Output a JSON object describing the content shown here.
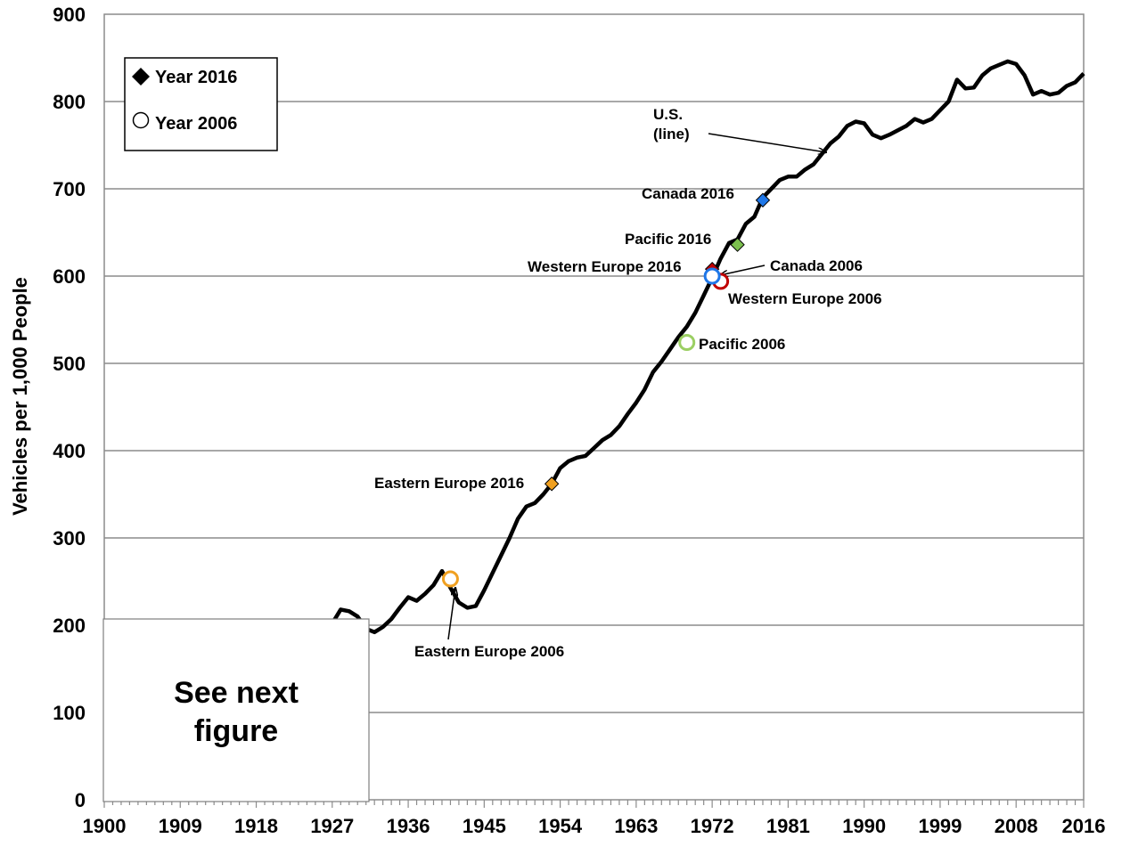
{
  "chart_data": {
    "type": "line",
    "ylabel": "Vehicles per 1,000 People",
    "xlabel": "",
    "xlim": [
      1900,
      2016
    ],
    "ylim": [
      0,
      900
    ],
    "y_ticks": [
      "0",
      "100",
      "200",
      "300",
      "400",
      "500",
      "600",
      "700",
      "800",
      "900"
    ],
    "x_ticks": [
      "1900",
      "1909",
      "1918",
      "1927",
      "1936",
      "1945",
      "1954",
      "1963",
      "1972",
      "1981",
      "1990",
      "1999",
      "2008",
      "2016"
    ],
    "grid": "horizontal",
    "legend": {
      "position": "top-left",
      "items": [
        {
          "label": "Year 2016",
          "marker": "filled-diamond"
        },
        {
          "label": "Year 2006",
          "marker": "open-circle"
        }
      ]
    },
    "overlay_box": {
      "text_line1": "See next",
      "text_line2": "figure"
    },
    "series": [
      {
        "name": "U.S.",
        "label_line1": "U.S.",
        "label_line2": "(line)",
        "color": "#000000",
        "points": [
          [
            1927,
            202
          ],
          [
            1928,
            218
          ],
          [
            1929,
            216
          ],
          [
            1930,
            210
          ],
          [
            1931,
            196
          ],
          [
            1932,
            192
          ],
          [
            1933,
            198
          ],
          [
            1934,
            207
          ],
          [
            1935,
            220
          ],
          [
            1936,
            232
          ],
          [
            1937,
            228
          ],
          [
            1938,
            236
          ],
          [
            1939,
            246
          ],
          [
            1940,
            262
          ],
          [
            1941,
            243
          ],
          [
            1942,
            226
          ],
          [
            1943,
            220
          ],
          [
            1944,
            222
          ],
          [
            1945,
            240
          ],
          [
            1946,
            260
          ],
          [
            1947,
            280
          ],
          [
            1948,
            300
          ],
          [
            1949,
            322
          ],
          [
            1950,
            336
          ],
          [
            1951,
            340
          ],
          [
            1952,
            350
          ],
          [
            1953,
            362
          ],
          [
            1954,
            380
          ],
          [
            1955,
            388
          ],
          [
            1956,
            392
          ],
          [
            1957,
            394
          ],
          [
            1958,
            403
          ],
          [
            1959,
            412
          ],
          [
            1960,
            418
          ],
          [
            1961,
            428
          ],
          [
            1962,
            442
          ],
          [
            1963,
            455
          ],
          [
            1964,
            470
          ],
          [
            1965,
            490
          ],
          [
            1966,
            502
          ],
          [
            1967,
            516
          ],
          [
            1968,
            530
          ],
          [
            1969,
            542
          ],
          [
            1970,
            558
          ],
          [
            1971,
            578
          ],
          [
            1972,
            598
          ],
          [
            1973,
            620
          ],
          [
            1974,
            638
          ],
          [
            1975,
            642
          ],
          [
            1976,
            660
          ],
          [
            1977,
            668
          ],
          [
            1978,
            690
          ],
          [
            1979,
            700
          ],
          [
            1980,
            710
          ],
          [
            1981,
            714
          ],
          [
            1982,
            714
          ],
          [
            1983,
            722
          ],
          [
            1984,
            728
          ],
          [
            1985,
            740
          ],
          [
            1986,
            752
          ],
          [
            1987,
            760
          ],
          [
            1988,
            772
          ],
          [
            1989,
            777
          ],
          [
            1990,
            775
          ],
          [
            1991,
            762
          ],
          [
            1992,
            758
          ],
          [
            1993,
            762
          ],
          [
            1994,
            767
          ],
          [
            1995,
            772
          ],
          [
            1996,
            780
          ],
          [
            1997,
            776
          ],
          [
            1998,
            780
          ],
          [
            1999,
            790
          ],
          [
            2000,
            800
          ],
          [
            2001,
            825
          ],
          [
            2002,
            815
          ],
          [
            2003,
            816
          ],
          [
            2004,
            830
          ],
          [
            2005,
            838
          ],
          [
            2006,
            842
          ],
          [
            2007,
            846
          ],
          [
            2008,
            843
          ],
          [
            2009,
            830
          ],
          [
            2010,
            808
          ],
          [
            2011,
            812
          ],
          [
            2012,
            808
          ],
          [
            2013,
            810
          ],
          [
            2014,
            818
          ],
          [
            2015,
            822
          ],
          [
            2016,
            832
          ]
        ]
      }
    ],
    "markers": [
      {
        "region": "Canada",
        "year": 2016,
        "label": "Canada 2016",
        "x": 1978,
        "value": 687,
        "shape": "diamond",
        "color": "#1f77e8"
      },
      {
        "region": "Pacific",
        "year": 2016,
        "label": "Pacific 2016",
        "x": 1975,
        "value": 636,
        "shape": "diamond",
        "color": "#7cc04e"
      },
      {
        "region": "Western Europe",
        "year": 2016,
        "label": "Western Europe 2016",
        "x": 1972,
        "value": 608,
        "shape": "diamond",
        "color": "#c00000"
      },
      {
        "region": "Eastern Europe",
        "year": 2016,
        "label": "Eastern Europe 2016",
        "x": 1953,
        "value": 362,
        "shape": "diamond",
        "color": "#f0a020"
      },
      {
        "region": "Western Europe",
        "year": 2006,
        "label": "Western Europe 2006",
        "x": 1973,
        "value": 594,
        "shape": "circle",
        "color": "#c00000"
      },
      {
        "region": "Canada",
        "year": 2006,
        "label": "Canada 2006",
        "x": 1972,
        "value": 600,
        "shape": "circle",
        "color": "#1f77e8"
      },
      {
        "region": "Pacific",
        "year": 2006,
        "label": "Pacific 2006",
        "x": 1969,
        "value": 524,
        "shape": "circle",
        "color": "#9bcf63"
      },
      {
        "region": "Eastern Europe",
        "year": 2006,
        "label": "Eastern Europe 2006",
        "x": 1941,
        "value": 253,
        "shape": "circle",
        "color": "#f0a020"
      }
    ]
  }
}
